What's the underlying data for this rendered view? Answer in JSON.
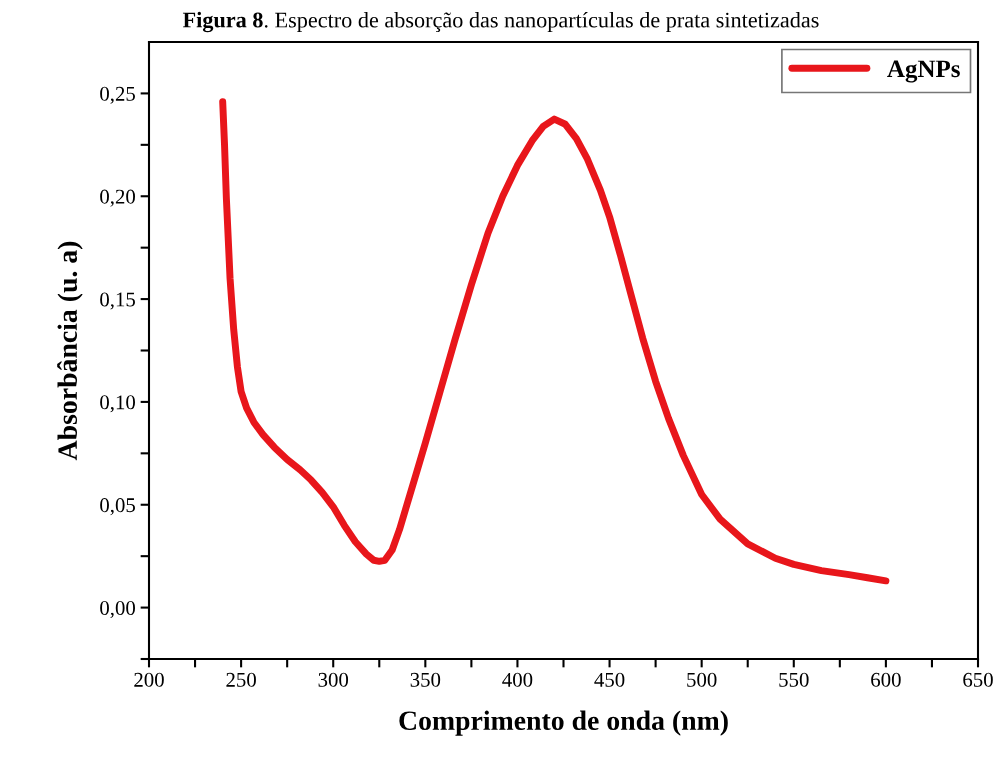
{
  "chart_data": {
    "type": "line",
    "title": "Figura 8. Espectro de absorção das nanopartículas de prata sintetizadas",
    "xlabel": "Comprimento de onda (nm)",
    "ylabel": "Absorbância (u. a)",
    "series": [
      {
        "name": "AgNPs",
        "color": "#e8161b",
        "x": [
          240,
          241,
          242,
          244,
          246,
          248,
          250,
          253,
          257,
          262,
          268,
          275,
          282,
          288,
          294,
          300,
          306,
          312,
          318,
          322,
          325,
          328,
          332,
          336,
          340,
          345,
          350,
          358,
          366,
          375,
          384,
          392,
          400,
          408,
          414,
          420,
          426,
          432,
          438,
          445,
          450,
          456,
          462,
          468,
          475,
          482,
          490,
          500,
          510,
          525,
          540,
          550,
          565,
          580,
          590,
          600
        ],
        "values": [
          0.246,
          0.225,
          0.199,
          0.16,
          0.135,
          0.117,
          0.105,
          0.097,
          0.09,
          0.084,
          0.078,
          0.072,
          0.067,
          0.062,
          0.056,
          0.049,
          0.04,
          0.032,
          0.026,
          0.023,
          0.0225,
          0.023,
          0.028,
          0.038,
          0.05,
          0.065,
          0.08,
          0.105,
          0.13,
          0.157,
          0.182,
          0.2,
          0.215,
          0.227,
          0.234,
          0.2375,
          0.235,
          0.228,
          0.218,
          0.203,
          0.19,
          0.171,
          0.151,
          0.131,
          0.11,
          0.092,
          0.074,
          0.055,
          0.043,
          0.031,
          0.024,
          0.021,
          0.018,
          0.016,
          0.0145,
          0.013
        ]
      }
    ],
    "xlim": [
      200,
      650
    ],
    "ylim": [
      -0.025,
      0.275
    ],
    "xticks": [
      200,
      {
        "value": 225,
        "label": null
      },
      250,
      {
        "value": 275,
        "label": null
      },
      300,
      {
        "value": 325,
        "label": null
      },
      350,
      {
        "value": 375,
        "label": null
      },
      400,
      {
        "value": 425,
        "label": null
      },
      450,
      {
        "value": 475,
        "label": null
      },
      500,
      {
        "value": 525,
        "label": null
      },
      550,
      {
        "value": 575,
        "label": null
      },
      600,
      {
        "value": 625,
        "label": null
      },
      650
    ],
    "yticks": [
      {
        "value": -0.025,
        "label": null
      },
      {
        "value": 0,
        "label": "0,00"
      },
      {
        "value": 0.025,
        "label": null
      },
      {
        "value": 0.05,
        "label": "0,05"
      },
      {
        "value": 0.075,
        "label": null
      },
      {
        "value": 0.1,
        "label": "0,10"
      },
      {
        "value": 0.125,
        "label": null
      },
      {
        "value": 0.15,
        "label": "0,15"
      },
      {
        "value": 0.175,
        "label": null
      },
      {
        "value": 0.2,
        "label": "0,20"
      },
      {
        "value": 0.225,
        "label": null
      },
      {
        "value": 0.25,
        "label": "0,25"
      }
    ],
    "legend": "top right",
    "grid": false,
    "marker": "none",
    "line_style": "solid"
  }
}
